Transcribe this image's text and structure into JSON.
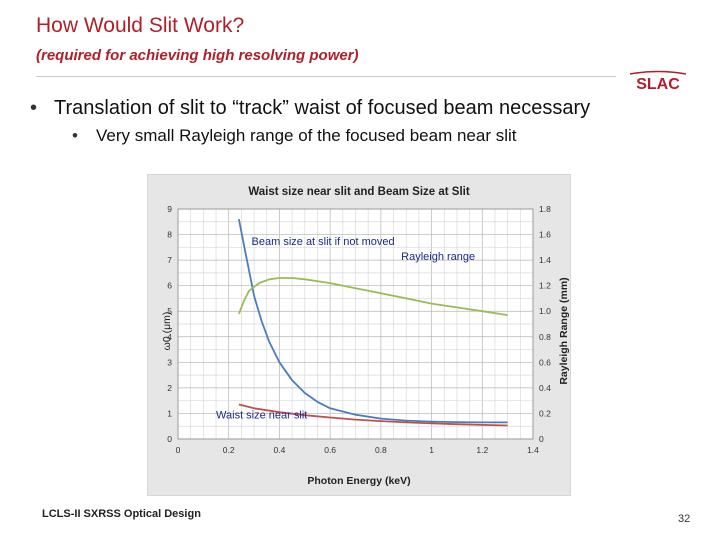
{
  "slide": {
    "title": "How Would Slit Work?",
    "subtitle": "(required for achieving high resolving power)",
    "logo_text": "SLAC",
    "bullets": [
      "Translation of slit to “track” waist of focused beam necessary",
      "Very small Rayleigh range of the focused beam near slit"
    ],
    "footer": "LCLS-II SXRSS Optical Design",
    "page_number": "32",
    "colors": {
      "title": "#b0202a",
      "logo": "#b0202a"
    }
  },
  "chart_data": {
    "type": "line",
    "title": "Waist size near slit and Beam Size at Slit",
    "xlabel": "Photon Energy (keV)",
    "ylabel_left": "ω0 (μm)",
    "ylabel_right": "Rayleigh Range (mm)",
    "xlim": [
      0,
      1.4
    ],
    "ylim_left": [
      0,
      9
    ],
    "ylim_right": [
      0,
      1.8
    ],
    "x_ticks": [
      "0",
      "0.2",
      "0.4",
      "0.6",
      "0.8",
      "1",
      "1.2",
      "1.4"
    ],
    "y_left_ticks": [
      "0",
      "1",
      "2",
      "3",
      "4",
      "5",
      "6",
      "7",
      "8",
      "9"
    ],
    "y_right_ticks": [
      "0",
      "0.2",
      "0.4",
      "0.6",
      "0.8",
      "1.0",
      "1.2",
      "1.4",
      "1.6",
      "1.8"
    ],
    "grid": true,
    "series": [
      {
        "name": "Beam size at slit if not moved",
        "axis": "left",
        "color": "#4a7ebb",
        "x": [
          0.24,
          0.26,
          0.28,
          0.3,
          0.33,
          0.36,
          0.4,
          0.45,
          0.5,
          0.55,
          0.6,
          0.7,
          0.8,
          0.9,
          1.0,
          1.1,
          1.2,
          1.3
        ],
        "y": [
          8.6,
          7.6,
          6.6,
          5.6,
          4.6,
          3.8,
          3.0,
          2.3,
          1.8,
          1.45,
          1.2,
          0.95,
          0.8,
          0.72,
          0.68,
          0.66,
          0.65,
          0.65
        ]
      },
      {
        "name": "Rayleigh range",
        "axis": "right",
        "color": "#9bbb59",
        "x": [
          0.24,
          0.26,
          0.28,
          0.32,
          0.36,
          0.4,
          0.45,
          0.5,
          0.6,
          0.7,
          0.8,
          0.9,
          1.0,
          1.1,
          1.2,
          1.3
        ],
        "y": [
          0.98,
          1.08,
          1.16,
          1.22,
          1.25,
          1.26,
          1.26,
          1.25,
          1.22,
          1.18,
          1.14,
          1.1,
          1.06,
          1.03,
          1.0,
          0.97
        ]
      },
      {
        "name": "Waist size near slit",
        "axis": "left",
        "color": "#c0504d",
        "x": [
          0.24,
          0.3,
          0.4,
          0.5,
          0.6,
          0.7,
          0.8,
          0.9,
          1.0,
          1.1,
          1.2,
          1.3
        ],
        "y": [
          1.35,
          1.2,
          1.05,
          0.93,
          0.84,
          0.76,
          0.7,
          0.65,
          0.61,
          0.58,
          0.55,
          0.53
        ]
      }
    ]
  }
}
